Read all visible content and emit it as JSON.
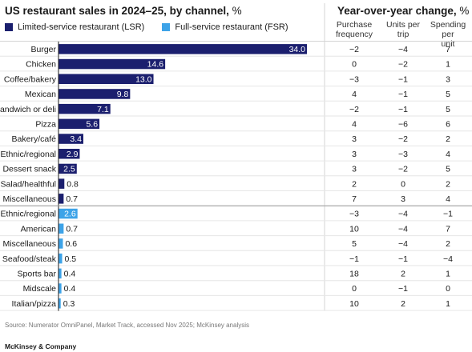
{
  "title": "US restaurant sales in 2024–25, by channel,",
  "title_unit": "%",
  "right_title": "Year-over-year change,",
  "right_title_unit": "%",
  "legend": [
    {
      "label": "Limited-service restaurant (LSR)",
      "color": "#1b1f6e"
    },
    {
      "label": "Full-service restaurant (FSR)",
      "color": "#3da3e8"
    }
  ],
  "columns": [
    {
      "line1": "Purchase",
      "line2": "frequency"
    },
    {
      "line1": "Units per",
      "line2": "trip"
    },
    {
      "line1": "Spending per",
      "line2": "unit"
    }
  ],
  "chart_data": {
    "type": "bar",
    "orientation": "horizontal",
    "x_max": 34.0,
    "series": [
      {
        "name": "Limited-service restaurant (LSR)",
        "color": "#1b1f6e"
      },
      {
        "name": "Full-service restaurant (FSR)",
        "color": "#3da3e8"
      }
    ],
    "rows": [
      {
        "category": "Burger",
        "series": 0,
        "value": 34.0,
        "label": "34.0",
        "yoy": [
          "−2",
          "−4",
          "7"
        ]
      },
      {
        "category": "Chicken",
        "series": 0,
        "value": 14.6,
        "label": "14.6",
        "yoy": [
          "0",
          "−2",
          "1"
        ]
      },
      {
        "category": "Coffee/bakery",
        "series": 0,
        "value": 13.0,
        "label": "13.0",
        "yoy": [
          "−3",
          "−1",
          "3"
        ]
      },
      {
        "category": "Mexican",
        "series": 0,
        "value": 9.8,
        "label": "9.8",
        "yoy": [
          "4",
          "−1",
          "5"
        ]
      },
      {
        "category": "Sandwich or deli",
        "series": 0,
        "value": 7.1,
        "label": "7.1",
        "yoy": [
          "−2",
          "−1",
          "5"
        ]
      },
      {
        "category": "Pizza",
        "series": 0,
        "value": 5.6,
        "label": "5.6",
        "yoy": [
          "4",
          "−6",
          "6"
        ]
      },
      {
        "category": "Bakery/café",
        "series": 0,
        "value": 3.4,
        "label": "3.4",
        "yoy": [
          "3",
          "−2",
          "2"
        ]
      },
      {
        "category": "Ethnic/regional",
        "series": 0,
        "value": 2.9,
        "label": "2.9",
        "yoy": [
          "3",
          "−3",
          "4"
        ]
      },
      {
        "category": "Dessert snack",
        "series": 0,
        "value": 2.5,
        "label": "2.5",
        "yoy": [
          "3",
          "−2",
          "5"
        ]
      },
      {
        "category": "Salad/healthful",
        "series": 0,
        "value": 0.8,
        "label": "0.8",
        "yoy": [
          "2",
          "0",
          "2"
        ]
      },
      {
        "category": "Miscellaneous",
        "series": 0,
        "value": 0.7,
        "label": "0.7",
        "yoy": [
          "7",
          "3",
          "4"
        ]
      },
      {
        "category": "Ethnic/regional",
        "series": 1,
        "value": 2.6,
        "label": "2.6",
        "yoy": [
          "−3",
          "−4",
          "−1"
        ]
      },
      {
        "category": "American",
        "series": 1,
        "value": 0.7,
        "label": "0.7",
        "yoy": [
          "10",
          "−4",
          "7"
        ]
      },
      {
        "category": "Miscellaneous",
        "series": 1,
        "value": 0.6,
        "label": "0.6",
        "yoy": [
          "5",
          "−4",
          "2"
        ]
      },
      {
        "category": "Seafood/steak",
        "series": 1,
        "value": 0.5,
        "label": "0.5",
        "yoy": [
          "−1",
          "−1",
          "−4"
        ]
      },
      {
        "category": "Sports bar",
        "series": 1,
        "value": 0.4,
        "label": "0.4",
        "yoy": [
          "18",
          "2",
          "1"
        ]
      },
      {
        "category": "Midscale",
        "series": 1,
        "value": 0.4,
        "label": "0.4",
        "yoy": [
          "0",
          "−1",
          "0"
        ]
      },
      {
        "category": "Italian/pizza",
        "series": 1,
        "value": 0.3,
        "label": "0.3",
        "yoy": [
          "10",
          "2",
          "1"
        ]
      }
    ]
  },
  "source": "Source: Numerator OmniPanel, Market Track, accessed Nov 2025; McKinsey analysis",
  "brand": "McKinsey & Company"
}
